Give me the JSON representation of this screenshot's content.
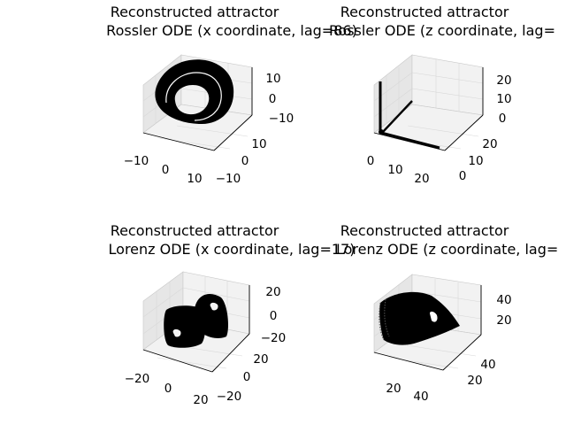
{
  "chart_data": [
    {
      "type": "scatter",
      "subtype": "3d-attractor",
      "title_line1": "Reconstructed attractor",
      "title_line2": "Rossler ODE (x coordinate, lag=86)",
      "x_ticks": [
        "−10",
        "0",
        "10"
      ],
      "y_ticks": [
        "−10",
        "0",
        "10"
      ],
      "z_ticks": [
        "−10",
        "0",
        "10"
      ],
      "xlim": [
        -12,
        14
      ],
      "ylim": [
        -12,
        12
      ],
      "zlim": [
        -12,
        14
      ],
      "color": "#000000",
      "shape": "torus-ring"
    },
    {
      "type": "scatter",
      "subtype": "3d-attractor",
      "title_line1": "Reconstructed attractor",
      "title_line2": "Rossler ODE (z coordinate, lag=",
      "x_ticks": [
        "0",
        "10",
        "20"
      ],
      "y_ticks": [
        "0",
        "10",
        "20"
      ],
      "z_ticks": [
        "0",
        "10",
        "20"
      ],
      "xlim": [
        0,
        25
      ],
      "ylim": [
        0,
        25
      ],
      "zlim": [
        0,
        25
      ],
      "color": "#000000",
      "shape": "orthogonal-spikes"
    },
    {
      "type": "scatter",
      "subtype": "3d-attractor",
      "title_line1": "Reconstructed attractor",
      "title_line2": "Lorenz ODE (x coordinate, lag=17)",
      "x_ticks": [
        "−20",
        "0",
        "20"
      ],
      "y_ticks": [
        "−20",
        "0",
        "20"
      ],
      "z_ticks": [
        "−20",
        "0",
        "20"
      ],
      "xlim": [
        -22,
        22
      ],
      "ylim": [
        -22,
        22
      ],
      "zlim": [
        -22,
        22
      ],
      "color": "#000000",
      "shape": "butterfly"
    },
    {
      "type": "scatter",
      "subtype": "3d-attractor",
      "title_line1": "Reconstructed attractor",
      "title_line2": "Lorenz ODE (z coordinate, lag=",
      "x_ticks": [
        "20",
        "40"
      ],
      "y_ticks": [
        "20",
        "40"
      ],
      "z_ticks": [
        "20",
        "40"
      ],
      "xlim": [
        0,
        50
      ],
      "ylim": [
        0,
        50
      ],
      "zlim": [
        0,
        50
      ],
      "color": "#000000",
      "shape": "fan-sheet"
    }
  ]
}
